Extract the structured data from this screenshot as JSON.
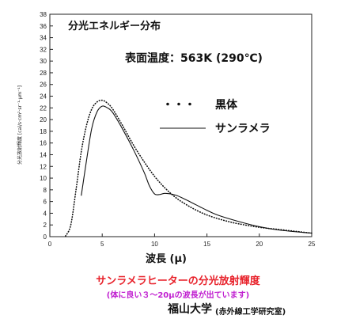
{
  "chart_data": {
    "type": "line",
    "title": "分光エネルギー分布",
    "subtitle": "表面温度：563K (290℃)",
    "xlabel": "波長 (μ)",
    "ylabel": "分光放射輝度 [cal/s·cm²·sr⁻¹·μm⁻¹]",
    "xlim": [
      0,
      25
    ],
    "ylim": [
      0,
      38
    ],
    "xticks": [
      0,
      5,
      10,
      15,
      20,
      25
    ],
    "yticks": [
      0,
      2,
      4,
      6,
      8,
      10,
      12,
      14,
      16,
      18,
      20,
      22,
      24,
      26,
      28,
      30,
      32,
      34,
      36,
      38
    ],
    "grid": false,
    "legend_position": "right",
    "series": [
      {
        "name": "黒体",
        "style": "dotted",
        "x": [
          1.5,
          2.0,
          2.5,
          3.0,
          3.5,
          4.0,
          4.5,
          5.0,
          5.5,
          6.0,
          7.0,
          8.0,
          9.0,
          10.0,
          11.0,
          12.0,
          13.0,
          14.0,
          15.0,
          16.0,
          17.0,
          18.0,
          20.0,
          22.0,
          25.0
        ],
        "y": [
          0.1,
          2.0,
          8.0,
          14.5,
          19.0,
          21.8,
          23.0,
          23.3,
          22.8,
          21.8,
          18.8,
          15.6,
          12.8,
          10.3,
          8.3,
          6.7,
          5.5,
          4.5,
          3.7,
          3.1,
          2.6,
          2.2,
          1.6,
          1.2,
          0.6
        ]
      },
      {
        "name": "サンラメラ",
        "style": "solid",
        "x": [
          3.0,
          3.5,
          4.0,
          4.5,
          5.0,
          5.5,
          6.0,
          7.0,
          8.0,
          9.0,
          9.5,
          10.0,
          10.5,
          11.0,
          12.0,
          13.0,
          14.0,
          15.0,
          16.0,
          18.0,
          20.0,
          22.0,
          25.0
        ],
        "y": [
          7.0,
          13.0,
          18.5,
          21.3,
          22.3,
          22.0,
          21.2,
          18.2,
          14.8,
          11.0,
          8.7,
          7.3,
          7.2,
          7.4,
          7.1,
          6.3,
          5.4,
          4.5,
          3.7,
          2.6,
          1.7,
          1.1,
          0.6
        ]
      }
    ]
  },
  "legend": {
    "dots_symbol": "・・・",
    "blackbody": "黒体",
    "sunlamella": "サンラメラ"
  },
  "footer": {
    "heading": "サンラメラヒーターの分光放射輝度",
    "subheading": "(体に良い３～20μの波長が出ています)",
    "university": "福山大学",
    "lab": "(赤外線工学研究室)"
  },
  "colors": {
    "heading": "#e8222b",
    "subheading": "#c01fd0",
    "ink": "#111111"
  }
}
